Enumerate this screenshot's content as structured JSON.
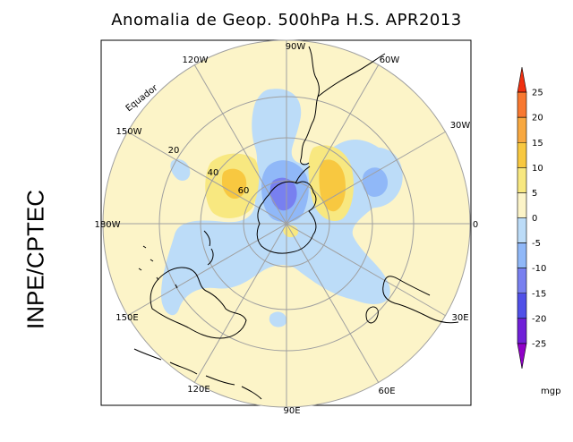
{
  "title": "Anomalia de Geop. 500hPa H.S. APR2013",
  "side_label": "INPE/CPTEC",
  "units": "mgp",
  "equator_label": "Equador",
  "lon_labels": [
    "90W",
    "120W",
    "60W",
    "150W",
    "30W",
    "180W",
    "0",
    "150E",
    "30E",
    "120E",
    "60E",
    "90E"
  ],
  "lat_labels": [
    "20",
    "40",
    "60"
  ],
  "colorbar": {
    "ticks": [
      "25",
      "20",
      "15",
      "10",
      "5",
      "0",
      "-5",
      "-10",
      "-15",
      "-20",
      "-25"
    ],
    "colors": [
      "#f03010",
      "#f87830",
      "#f8a840",
      "#f8c840",
      "#f8e880",
      "#fcf4c8",
      "#bcdcf8",
      "#90b8f8",
      "#7880f0",
      "#5050e8",
      "#7020d8",
      "#9000c8"
    ]
  }
}
